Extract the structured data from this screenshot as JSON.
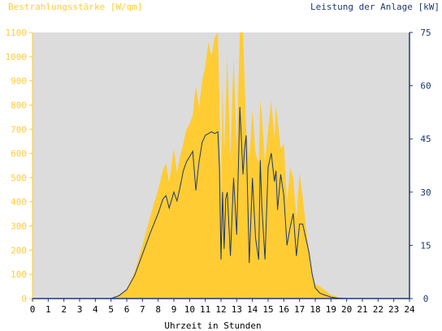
{
  "chart_data": {
    "type": "area",
    "left_axis_title": "Bestrahlungsstärke [W/qm]",
    "right_axis_title": "Leistung der Anlage [kW]",
    "xlabel": "Uhrzeit in Stunden",
    "x_ticks": [
      "0",
      "1",
      "2",
      "3",
      "4",
      "5",
      "6",
      "7",
      "8",
      "9",
      "10",
      "11",
      "12",
      "13",
      "14",
      "15",
      "16",
      "17",
      "18",
      "19",
      "20",
      "21",
      "22",
      "23",
      "24"
    ],
    "y_left_ticks": [
      "0",
      "100",
      "200",
      "300",
      "400",
      "500",
      "600",
      "700",
      "800",
      "900",
      "1000",
      "1100"
    ],
    "y_right_ticks": [
      "0",
      "15",
      "30",
      "45",
      "60",
      "75"
    ],
    "xlim": [
      0,
      24
    ],
    "ylim_left": [
      0,
      1100
    ],
    "ylim_right": [
      0,
      75
    ],
    "colors": {
      "plot_background": "#dcdcdc",
      "irradiance_fill": "#ffcc33",
      "power_line": "#1e3870",
      "left_axis_text": "#ffcc33",
      "right_axis_text": "#1e3870"
    },
    "series": [
      {
        "name": "Bestrahlungsstärke [W/qm]",
        "axis": "left",
        "style": "filled-area",
        "x": [
          0,
          5,
          5.5,
          6.0,
          6.5,
          7.0,
          7.5,
          8.0,
          8.3,
          8.5,
          8.7,
          9.0,
          9.2,
          9.4,
          9.6,
          9.8,
          10.0,
          10.2,
          10.4,
          10.6,
          10.8,
          11.0,
          11.2,
          11.4,
          11.6,
          11.8,
          11.9,
          12.0,
          12.1,
          12.2,
          12.3,
          12.4,
          12.6,
          12.8,
          13.0,
          13.2,
          13.4,
          13.5,
          13.6,
          13.8,
          14.0,
          14.2,
          14.4,
          14.5,
          14.6,
          14.8,
          15.0,
          15.2,
          15.4,
          15.5,
          15.6,
          15.8,
          16.0,
          16.2,
          16.4,
          16.6,
          16.8,
          17.0,
          17.2,
          17.4,
          17.6,
          17.8,
          18.0,
          18.3,
          18.6,
          19.0,
          19.5,
          20.0,
          24
        ],
        "y": [
          0,
          0,
          15,
          40,
          110,
          220,
          340,
          450,
          530,
          560,
          480,
          620,
          520,
          590,
          640,
          700,
          720,
          760,
          880,
          790,
          900,
          960,
          1060,
          1000,
          1080,
          1130,
          820,
          400,
          900,
          600,
          800,
          1000,
          580,
          1000,
          620,
          1100,
          1150,
          900,
          700,
          580,
          780,
          600,
          560,
          820,
          760,
          560,
          700,
          820,
          660,
          800,
          740,
          620,
          640,
          400,
          540,
          500,
          330,
          520,
          420,
          300,
          200,
          100,
          60,
          50,
          35,
          15,
          5,
          0,
          0
        ]
      },
      {
        "name": "Leistung der Anlage [kW]",
        "axis": "right",
        "style": "line",
        "x": [
          0,
          5,
          5.5,
          6.0,
          6.5,
          7.0,
          7.5,
          8.0,
          8.3,
          8.5,
          8.7,
          9.0,
          9.2,
          9.4,
          9.6,
          9.8,
          10.0,
          10.2,
          10.4,
          10.6,
          10.8,
          11.0,
          11.2,
          11.4,
          11.6,
          11.8,
          11.9,
          12.0,
          12.1,
          12.2,
          12.3,
          12.4,
          12.6,
          12.8,
          13.0,
          13.2,
          13.4,
          13.5,
          13.6,
          13.8,
          14.0,
          14.2,
          14.4,
          14.5,
          14.6,
          14.8,
          15.0,
          15.2,
          15.4,
          15.5,
          15.6,
          15.8,
          16.0,
          16.2,
          16.4,
          16.6,
          16.8,
          17.0,
          17.2,
          17.4,
          17.6,
          17.8,
          18.0,
          18.3,
          18.6,
          19.0,
          19.5,
          20.0,
          24
        ],
        "y": [
          0,
          0,
          0.8,
          2.5,
          6.5,
          12.5,
          18.5,
          24,
          28,
          29,
          25.5,
          30,
          27.5,
          31.5,
          36,
          38.5,
          40,
          41.5,
          30.5,
          38.5,
          44,
          46,
          46.5,
          47,
          46.5,
          47,
          37,
          11,
          30,
          14,
          28,
          30,
          12,
          34,
          18,
          54,
          35,
          42,
          46,
          10,
          34,
          17,
          11,
          39,
          26,
          11,
          37,
          41,
          33,
          36,
          25,
          35,
          29,
          15,
          20,
          24,
          12,
          21,
          21,
          17,
          13,
          7,
          3,
          1.5,
          1,
          0.4,
          0.1,
          0,
          0
        ]
      }
    ]
  }
}
